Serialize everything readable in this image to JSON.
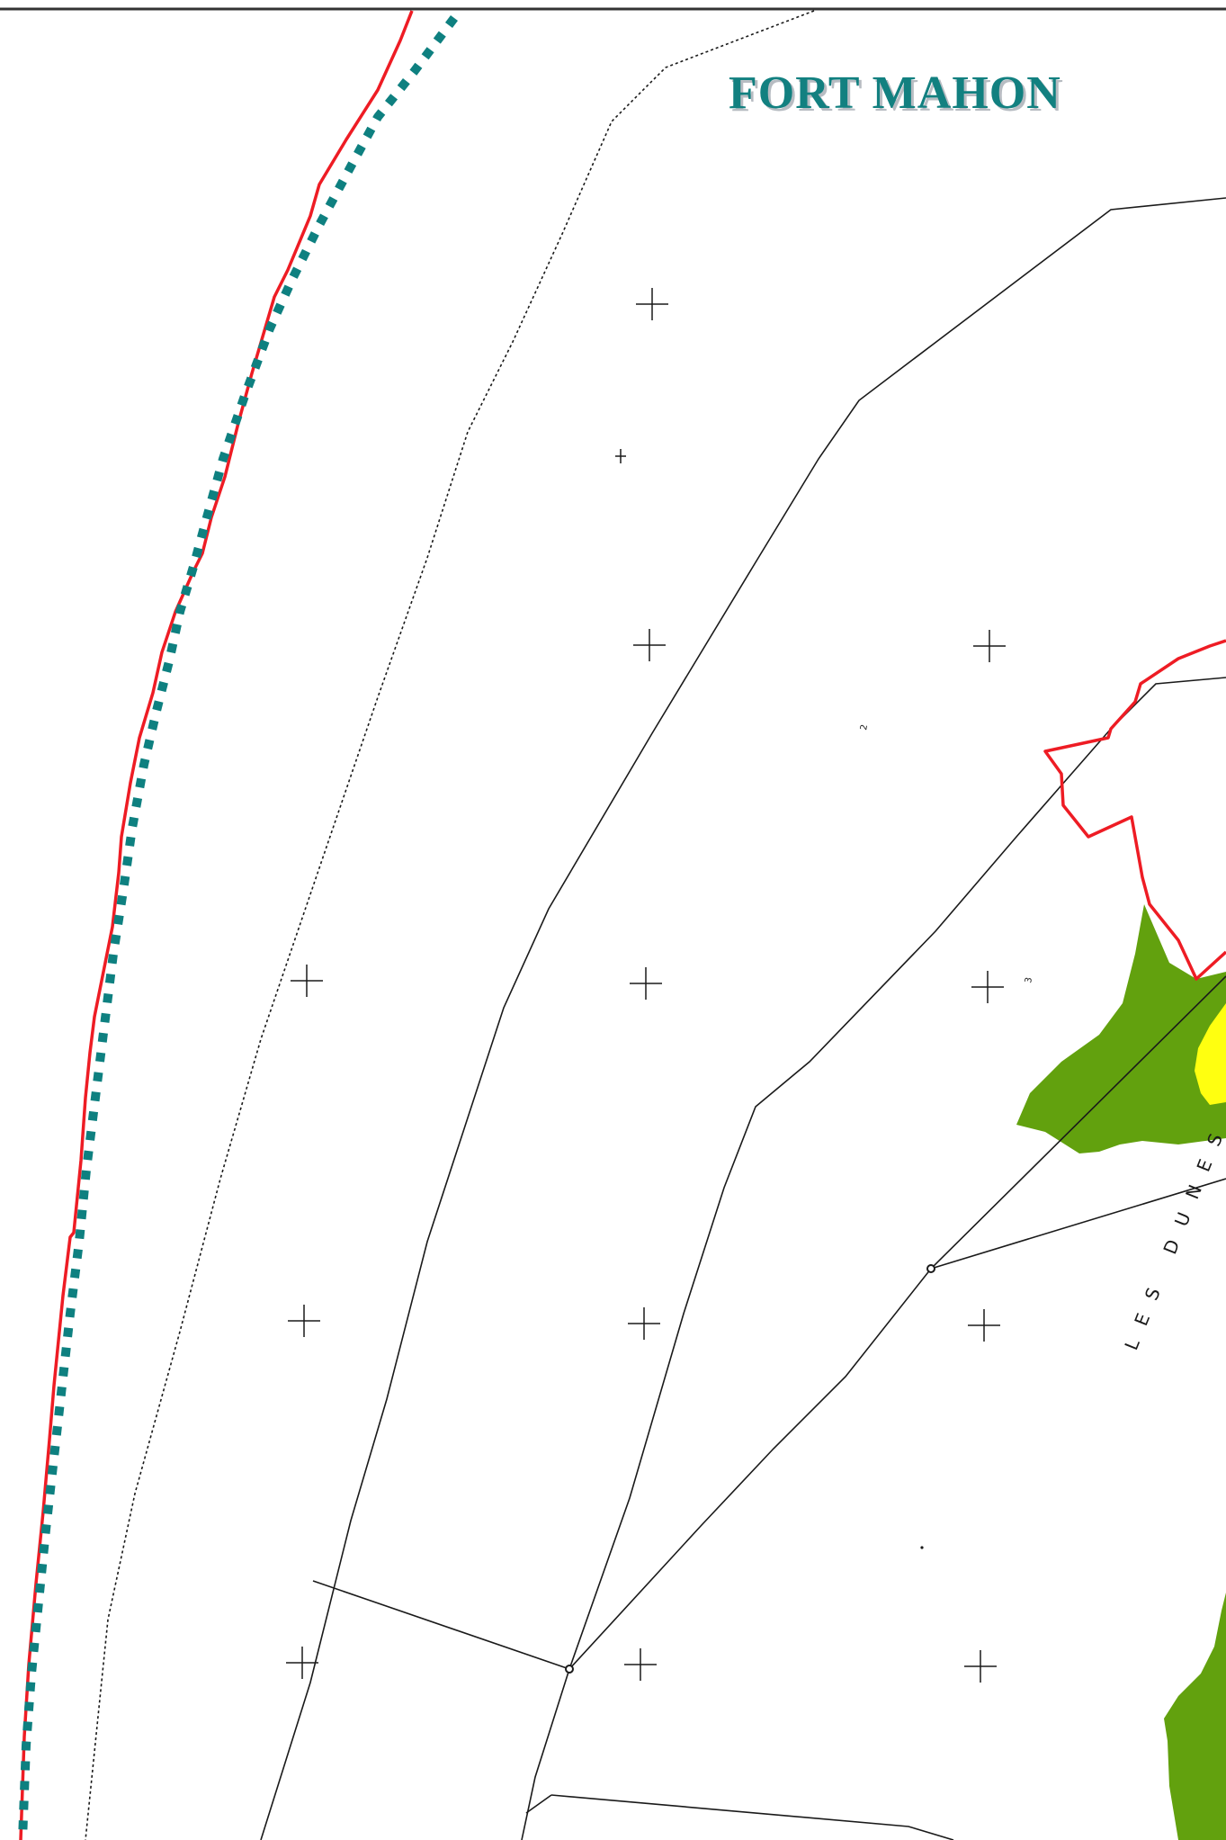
{
  "map": {
    "title": "FORT MAHON",
    "place_label": "LES DUNES",
    "parcel_numbers": [
      "2",
      "3"
    ],
    "colors": {
      "title_fill": "#128080",
      "title_shadow": "#b7bcc2",
      "boundary_red": "#ee1c24",
      "dotted_teal": "#0e8080",
      "vegetation_green": "#62a10e",
      "highlight_yellow": "#ffff10",
      "line_black": "#1a1a1a",
      "frame": "#333333"
    }
  }
}
